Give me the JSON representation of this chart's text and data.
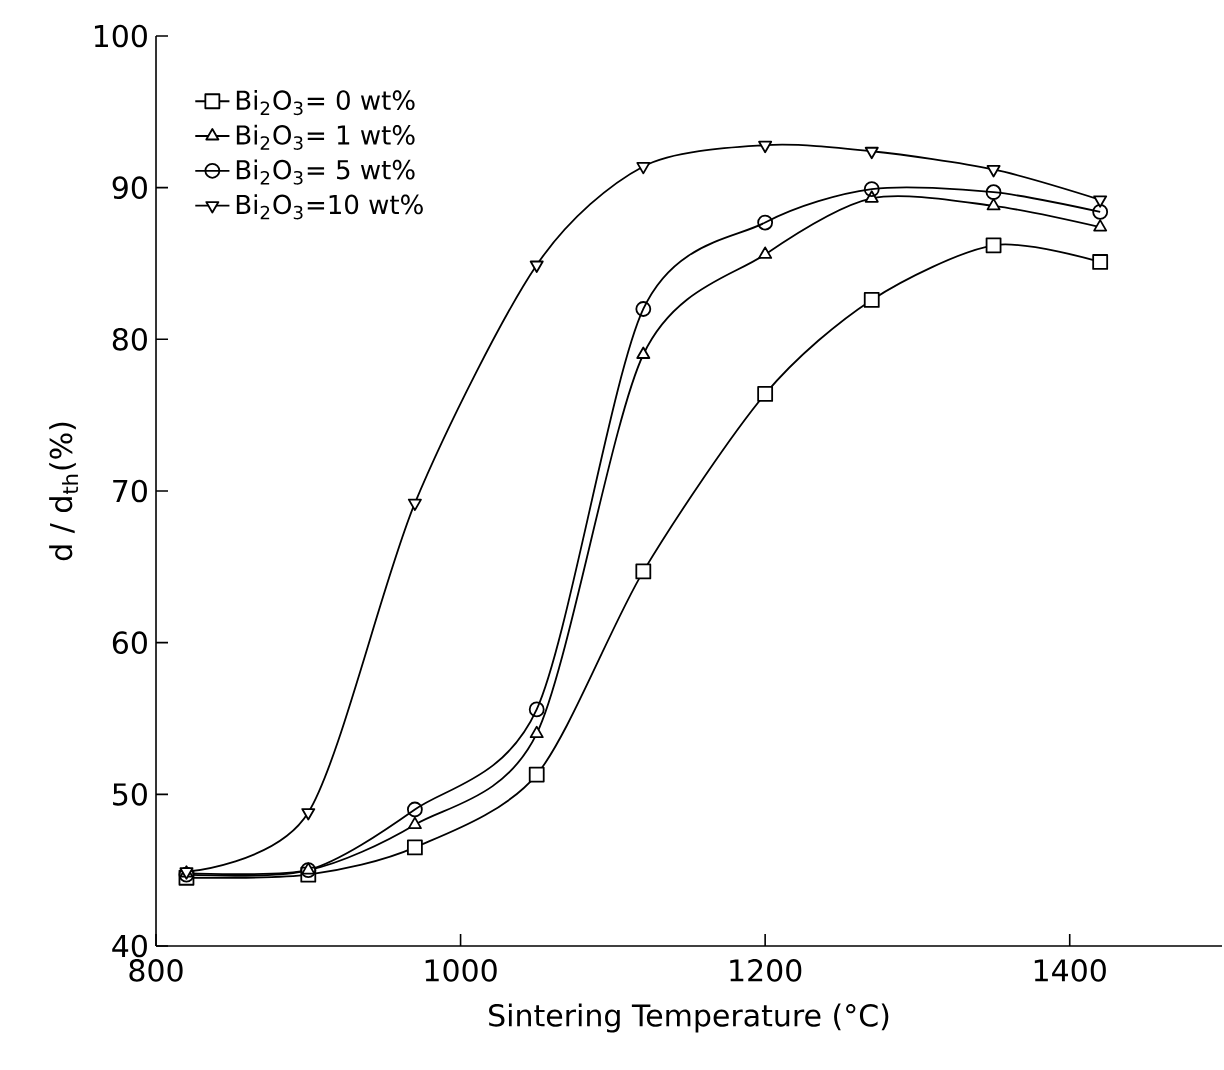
{
  "chart_data": {
    "type": "line",
    "xlabel": "Sintering Temperature (°C)",
    "ylabel": "d / d$_{th}$(%)",
    "x": [
      820,
      900,
      970,
      1050,
      1120,
      1200,
      1270,
      1350,
      1420
    ],
    "xlim": [
      800,
      1500
    ],
    "xticks": [
      800,
      1000,
      1200,
      1400
    ],
    "ylim": [
      40,
      100
    ],
    "yticks": [
      40,
      50,
      60,
      70,
      80,
      90,
      100
    ],
    "grid": false,
    "legend": "top left",
    "line_style": "solid",
    "series": [
      {
        "name": "Bi$_{2}$O$_{3}$= 0 wt%",
        "color": "#000000",
        "marker": "square",
        "values": [
          44.5,
          44.7,
          46.5,
          51.3,
          64.7,
          76.4,
          82.6,
          86.2,
          85.1
        ]
      },
      {
        "name": "Bi$_{2}$O$_{3}$= 1 wt%",
        "color": "#000000",
        "marker": "triangle",
        "values": [
          44.8,
          45.0,
          48.0,
          54.0,
          79.0,
          85.6,
          89.3,
          88.8,
          87.4
        ]
      },
      {
        "name": "Bi$_{2}$O$_{3}$=  5 wt%",
        "color": "#000000",
        "marker": "circle",
        "values": [
          44.7,
          45.0,
          49.0,
          55.6,
          82.0,
          87.7,
          89.9,
          89.7,
          88.4
        ]
      },
      {
        "name": "Bi$_{2}$O$_{3}$=10 wt%",
        "color": "#000000",
        "marker": "triangle down",
        "values": [
          44.9,
          48.8,
          69.2,
          84.9,
          91.4,
          92.8,
          92.4,
          91.2,
          89.2
        ]
      }
    ]
  }
}
